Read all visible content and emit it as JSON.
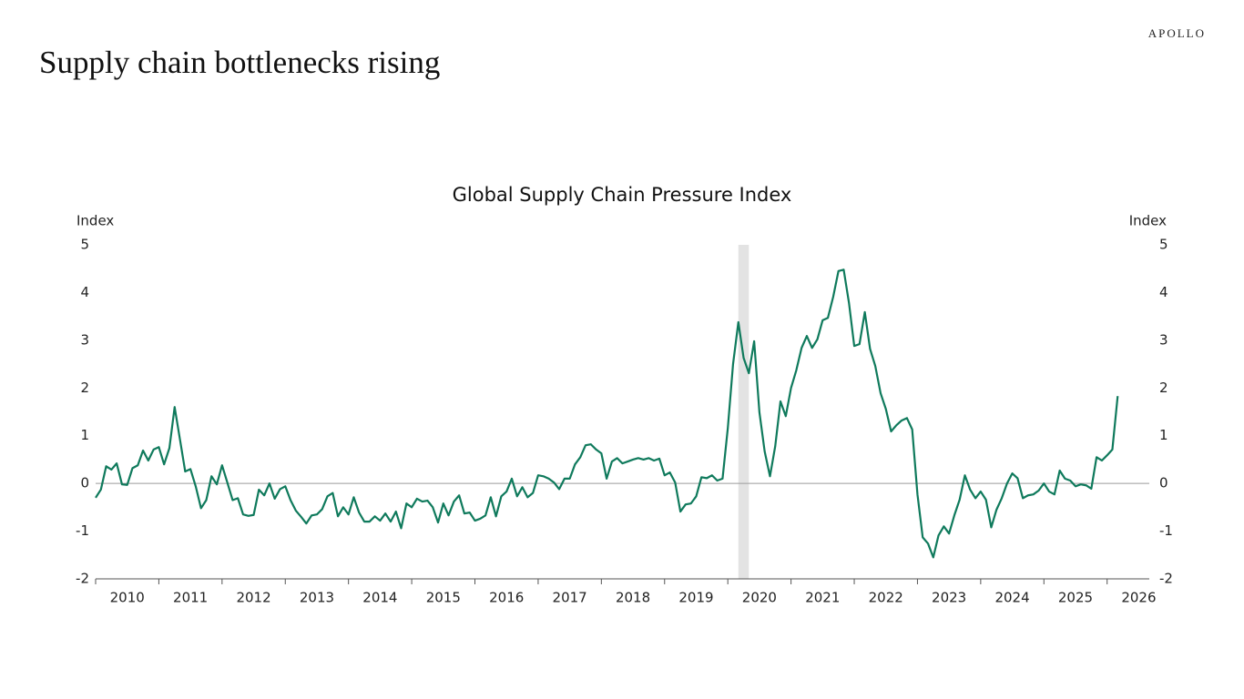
{
  "brand": "APOLLO",
  "headline": "Supply chain bottlenecks rising",
  "chart_data": {
    "type": "line",
    "title": "Global Supply Chain Pressure Index",
    "y_label": "Index",
    "y2_label": "Index",
    "x": [
      2010,
      2010.083,
      2010.167,
      2010.25,
      2010.333,
      2010.417,
      2010.5,
      2010.583,
      2010.667,
      2010.75,
      2010.833,
      2010.917,
      2011,
      2011.083,
      2011.167,
      2011.25,
      2011.333,
      2011.417,
      2011.5,
      2011.583,
      2011.667,
      2011.75,
      2011.833,
      2011.917,
      2012,
      2012.083,
      2012.167,
      2012.25,
      2012.333,
      2012.417,
      2012.5,
      2012.583,
      2012.667,
      2012.75,
      2012.833,
      2012.917,
      2013,
      2013.083,
      2013.167,
      2013.25,
      2013.333,
      2013.417,
      2013.5,
      2013.583,
      2013.667,
      2013.75,
      2013.833,
      2013.917,
      2014,
      2014.083,
      2014.167,
      2014.25,
      2014.333,
      2014.417,
      2014.5,
      2014.583,
      2014.667,
      2014.75,
      2014.833,
      2014.917,
      2015,
      2015.083,
      2015.167,
      2015.25,
      2015.333,
      2015.417,
      2015.5,
      2015.583,
      2015.667,
      2015.75,
      2015.833,
      2015.917,
      2016,
      2016.083,
      2016.167,
      2016.25,
      2016.333,
      2016.417,
      2016.5,
      2016.583,
      2016.667,
      2016.75,
      2016.833,
      2016.917,
      2017,
      2017.083,
      2017.167,
      2017.25,
      2017.333,
      2017.417,
      2017.5,
      2017.583,
      2017.667,
      2017.75,
      2017.833,
      2017.917,
      2018,
      2018.083,
      2018.167,
      2018.25,
      2018.333,
      2018.417,
      2018.5,
      2018.583,
      2018.667,
      2018.75,
      2018.833,
      2018.917,
      2019,
      2019.083,
      2019.167,
      2019.25,
      2019.333,
      2019.417,
      2019.5,
      2019.583,
      2019.667,
      2019.75,
      2019.833,
      2019.917,
      2020,
      2020.083,
      2020.167,
      2020.25,
      2020.333,
      2020.417,
      2020.5,
      2020.583,
      2020.667,
      2020.75,
      2020.833,
      2020.917,
      2021,
      2021.083,
      2021.167,
      2021.25,
      2021.333,
      2021.417,
      2021.5,
      2021.583,
      2021.667,
      2021.75,
      2021.833,
      2021.917,
      2022,
      2022.083,
      2022.167,
      2022.25,
      2022.333,
      2022.417,
      2022.5,
      2022.583,
      2022.667,
      2022.75,
      2022.833,
      2022.917,
      2023,
      2023.083,
      2023.167,
      2023.25,
      2023.333,
      2023.417,
      2023.5,
      2023.583,
      2023.667,
      2023.75,
      2023.833,
      2023.917,
      2024,
      2024.083,
      2024.167,
      2024.25,
      2024.333,
      2024.417,
      2024.5,
      2024.583,
      2024.667,
      2024.75,
      2024.833,
      2024.917,
      2025,
      2025.083,
      2025.167,
      2025.25,
      2025.333,
      2025.417,
      2025.5,
      2025.583,
      2025.667,
      2025.75,
      2025.833,
      2025.917,
      2026,
      2026.083,
      2026.167
    ],
    "series": [
      {
        "color": "#0f7a5c",
        "values": [
          -0.3,
          -0.13,
          0.36,
          0.29,
          0.42,
          -0.02,
          -0.03,
          0.32,
          0.38,
          0.69,
          0.48,
          0.71,
          0.76,
          0.4,
          0.74,
          1.6,
          0.93,
          0.25,
          0.3,
          -0.06,
          -0.52,
          -0.35,
          0.15,
          -0.02,
          0.38,
          0.02,
          -0.35,
          -0.31,
          -0.65,
          -0.68,
          -0.66,
          -0.13,
          -0.25,
          0,
          -0.32,
          -0.12,
          -0.06,
          -0.35,
          -0.57,
          -0.7,
          -0.84,
          -0.67,
          -0.65,
          -0.54,
          -0.27,
          -0.2,
          -0.69,
          -0.5,
          -0.65,
          -0.29,
          -0.61,
          -0.8,
          -0.8,
          -0.69,
          -0.78,
          -0.63,
          -0.8,
          -0.59,
          -0.94,
          -0.42,
          -0.5,
          -0.32,
          -0.38,
          -0.36,
          -0.5,
          -0.82,
          -0.42,
          -0.67,
          -0.38,
          -0.25,
          -0.63,
          -0.61,
          -0.78,
          -0.74,
          -0.67,
          -0.29,
          -0.69,
          -0.27,
          -0.17,
          0.1,
          -0.27,
          -0.08,
          -0.29,
          -0.2,
          0.17,
          0.15,
          0.1,
          0.02,
          -0.12,
          0.1,
          0.1,
          0.4,
          0.55,
          0.8,
          0.82,
          0.71,
          0.63,
          0.1,
          0.46,
          0.53,
          0.42,
          0.46,
          0.5,
          0.53,
          0.5,
          0.53,
          0.48,
          0.52,
          0.17,
          0.23,
          0.02,
          -0.59,
          -0.44,
          -0.42,
          -0.27,
          0.13,
          0.11,
          0.17,
          0.06,
          0.1,
          1.16,
          2.5,
          3.38,
          2.63,
          2.31,
          2.98,
          1.49,
          0.67,
          0.15,
          0.78,
          1.72,
          1.41,
          2.0,
          2.37,
          2.84,
          3.09,
          2.84,
          3.02,
          3.42,
          3.47,
          3.91,
          4.45,
          4.48,
          3.78,
          2.88,
          2.92,
          3.59,
          2.82,
          2.46,
          1.89,
          1.56,
          1.09,
          1.22,
          1.32,
          1.37,
          1.13,
          -0.23,
          -1.13,
          -1.26,
          -1.55,
          -1.09,
          -0.9,
          -1.05,
          -0.67,
          -0.34,
          0.17,
          -0.13,
          -0.31,
          -0.17,
          -0.34,
          -0.92,
          -0.55,
          -0.31,
          0,
          0.21,
          0.11,
          -0.31,
          -0.25,
          -0.23,
          -0.15,
          0,
          -0.17,
          -0.23,
          0.27,
          0.1,
          0.06,
          -0.06,
          -0.02,
          -0.04,
          -0.11,
          0.55,
          0.48,
          0.59,
          0.71,
          1.83
        ]
      }
    ],
    "shaded_periods": [
      [
        2020.167,
        2020.333
      ]
    ],
    "shade_color": "#e3e3e3",
    "xlim": [
      2010,
      2026.667
    ],
    "xticks": [
      2010,
      2011,
      2012,
      2013,
      2014,
      2015,
      2016,
      2017,
      2018,
      2019,
      2020,
      2021,
      2022,
      2023,
      2024,
      2025,
      2026
    ],
    "ylim": [
      -2,
      5
    ],
    "yticks": [
      -2,
      -1,
      0,
      1,
      2,
      3,
      4,
      5
    ],
    "y2lim": [
      -2,
      5
    ],
    "y2ticks": [
      -2,
      -1,
      0,
      1,
      2,
      3,
      4,
      5
    ],
    "zero_line": true,
    "grid": false
  }
}
